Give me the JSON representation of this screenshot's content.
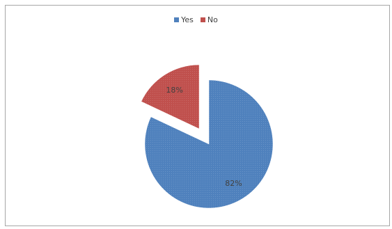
{
  "chart_data": {
    "type": "pie",
    "categories": [
      "Yes",
      "No"
    ],
    "values": [
      82,
      18
    ],
    "data_labels": [
      "82%",
      "18%"
    ],
    "colors": [
      "#4f81bd",
      "#c0504d"
    ],
    "legend_position": "top",
    "exploded": [
      "No"
    ]
  }
}
